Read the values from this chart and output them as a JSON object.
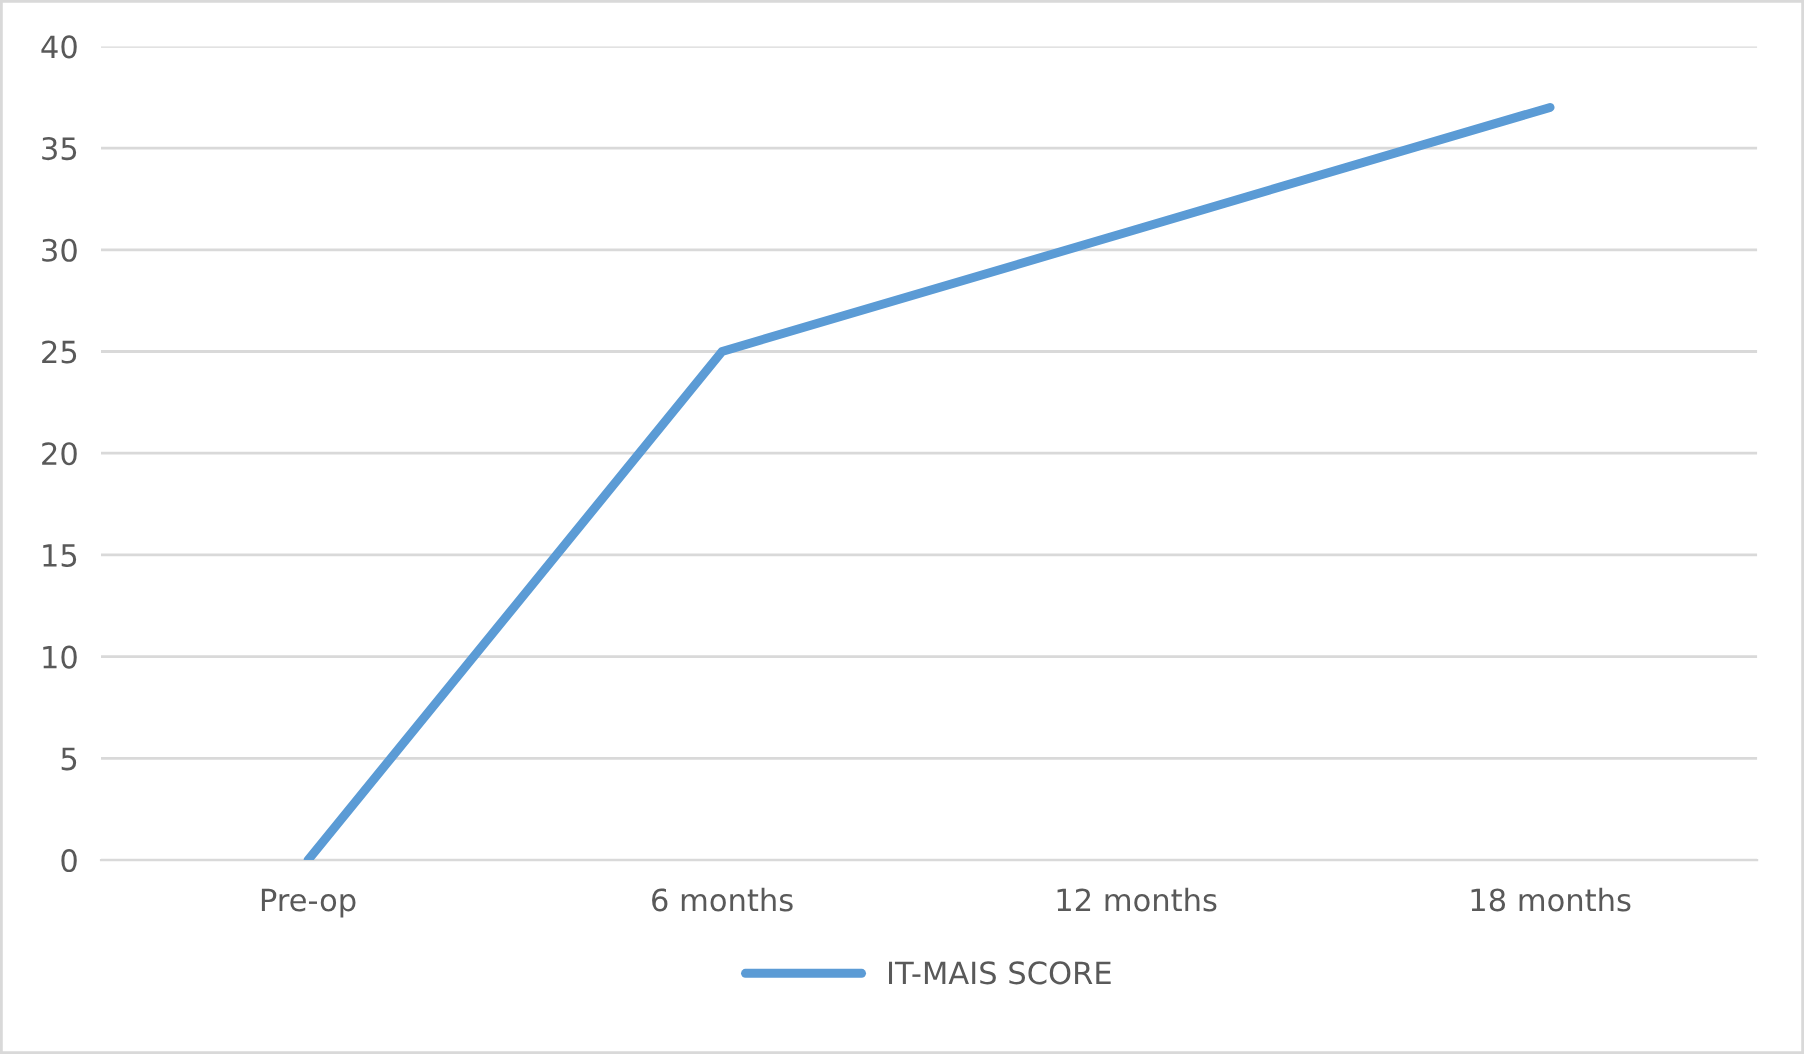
{
  "chart_data": {
    "type": "line",
    "categories": [
      "Pre-op",
      "6 months",
      "12 months",
      "18 months"
    ],
    "series": [
      {
        "name": "IT-MAIS SCORE",
        "color": "#5b9bd5",
        "values": [
          0,
          25,
          31,
          37
        ]
      }
    ],
    "ylim": [
      0,
      40
    ],
    "yticks": [
      0,
      5,
      10,
      15,
      20,
      25,
      30,
      35,
      40
    ],
    "grid": "y",
    "legend": "bottom",
    "marker": "none",
    "line_style": "solid"
  }
}
